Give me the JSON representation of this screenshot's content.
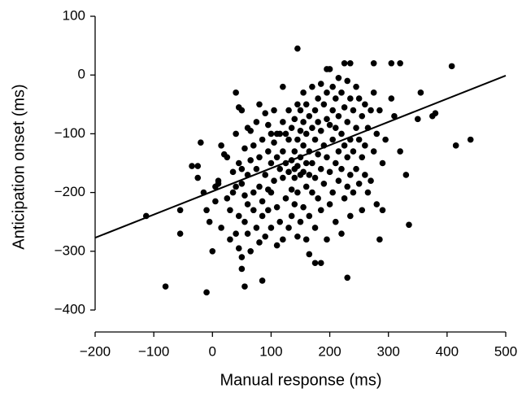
{
  "chart_data": {
    "type": "scatter",
    "xlabel": "Manual response (ms)",
    "ylabel": "Anticipation onset (ms)",
    "color": "#000000",
    "xlim": [
      -200,
      500
    ],
    "ylim": [
      -400,
      100
    ],
    "xticks": [
      {
        "value": -200,
        "label": "−200"
      },
      {
        "value": -100,
        "label": "−100"
      },
      0,
      100,
      200,
      300,
      400,
      500
    ],
    "yticks": [
      {
        "value": -400,
        "label": "−400"
      },
      {
        "value": -300,
        "label": "−300"
      },
      {
        "value": -200,
        "label": "−200"
      },
      {
        "value": -100,
        "label": "−100"
      },
      0,
      100
    ],
    "x": [
      -113,
      -80,
      -55,
      -55,
      -35,
      -25,
      -25,
      -20,
      -15,
      -10,
      -10,
      -5,
      0,
      5,
      5,
      10,
      10,
      15,
      15,
      20,
      25,
      25,
      30,
      30,
      35,
      35,
      40,
      40,
      40,
      40,
      45,
      45,
      45,
      45,
      50,
      50,
      50,
      50,
      50,
      55,
      55,
      55,
      55,
      60,
      60,
      60,
      60,
      65,
      65,
      65,
      70,
      70,
      70,
      75,
      75,
      75,
      80,
      80,
      80,
      80,
      85,
      85,
      85,
      85,
      90,
      90,
      90,
      95,
      95,
      95,
      95,
      100,
      100,
      100,
      100,
      105,
      105,
      105,
      110,
      110,
      110,
      110,
      115,
      115,
      115,
      120,
      120,
      120,
      120,
      120,
      125,
      125,
      125,
      130,
      130,
      130,
      130,
      135,
      135,
      135,
      135,
      140,
      140,
      140,
      140,
      140,
      145,
      145,
      145,
      145,
      145,
      145,
      150,
      150,
      150,
      150,
      150,
      155,
      155,
      155,
      155,
      155,
      160,
      160,
      160,
      160,
      160,
      165,
      165,
      165,
      165,
      165,
      170,
      170,
      170,
      170,
      175,
      175,
      175,
      175,
      175,
      180,
      180,
      180,
      180,
      185,
      185,
      185,
      185,
      185,
      190,
      190,
      190,
      195,
      195,
      195,
      195,
      195,
      200,
      200,
      200,
      200,
      205,
      205,
      205,
      205,
      210,
      210,
      210,
      210,
      215,
      215,
      215,
      215,
      220,
      220,
      220,
      220,
      225,
      225,
      225,
      225,
      230,
      230,
      230,
      230,
      230,
      235,
      235,
      235,
      235,
      235,
      240,
      240,
      240,
      245,
      245,
      245,
      250,
      250,
      250,
      255,
      255,
      255,
      260,
      260,
      260,
      265,
      265,
      270,
      270,
      275,
      275,
      275,
      280,
      280,
      285,
      285,
      290,
      290,
      295,
      305,
      305,
      310,
      320,
      320,
      330,
      335,
      350,
      355,
      375,
      380,
      408,
      415,
      440
    ],
    "values": [
      -240,
      -360,
      -270,
      -230,
      -155,
      -155,
      -175,
      -115,
      -200,
      -370,
      -230,
      -250,
      -300,
      -190,
      -215,
      -185,
      -180,
      -120,
      -260,
      -135,
      -140,
      -210,
      -280,
      -230,
      -165,
      -200,
      -30,
      -100,
      -190,
      -270,
      -55,
      -150,
      -240,
      -295,
      -60,
      -160,
      -185,
      -310,
      -330,
      -360,
      -125,
      -205,
      -250,
      -90,
      -170,
      -220,
      -270,
      -95,
      -145,
      -300,
      -200,
      -230,
      -120,
      -80,
      -160,
      -260,
      -50,
      -140,
      -190,
      -285,
      -350,
      -110,
      -215,
      -240,
      -65,
      -170,
      -275,
      -85,
      -130,
      -195,
      -230,
      -100,
      -150,
      -200,
      -260,
      -60,
      -115,
      -180,
      -290,
      -100,
      -140,
      -225,
      -100,
      -160,
      -250,
      -20,
      -80,
      -130,
      -175,
      -280,
      -100,
      -150,
      -210,
      -110,
      -60,
      -165,
      -260,
      -90,
      -145,
      -195,
      -240,
      -75,
      -130,
      -160,
      -175,
      -220,
      45,
      -50,
      -110,
      -155,
      -200,
      -275,
      -60,
      -95,
      -140,
      -170,
      -250,
      -30,
      -80,
      -120,
      -165,
      -225,
      -50,
      -100,
      -150,
      -190,
      -280,
      -305,
      -70,
      -130,
      -170,
      -240,
      -20,
      -90,
      -150,
      -200,
      -320,
      -60,
      -110,
      -175,
      -260,
      -40,
      -80,
      -135,
      -210,
      -320,
      -15,
      -95,
      -160,
      -230,
      -50,
      -120,
      -185,
      10,
      -30,
      -75,
      -140,
      -280,
      10,
      -85,
      -165,
      -220,
      -20,
      -60,
      -110,
      -200,
      -40,
      -90,
      -150,
      -250,
      -5,
      -70,
      -130,
      -180,
      -30,
      -100,
      -160,
      -270,
      20,
      -55,
      -120,
      -210,
      -345,
      -10,
      -80,
      -140,
      -190,
      20,
      -40,
      -110,
      -170,
      -240,
      -60,
      -130,
      -200,
      -20,
      -90,
      -160,
      -40,
      -110,
      -185,
      -70,
      -140,
      -230,
      -50,
      -120,
      -170,
      -90,
      -200,
      -180,
      -60,
      20,
      -30,
      -130,
      -100,
      -220,
      -280,
      -60,
      -230,
      -150,
      -110,
      20,
      -40,
      -70,
      20,
      -130,
      -170,
      -255,
      -75,
      -30,
      -70,
      -65,
      15,
      -120,
      -110
    ],
    "fit_line": {
      "x": [
        -200,
        500
      ],
      "values": [
        -277,
        -1
      ]
    }
  }
}
